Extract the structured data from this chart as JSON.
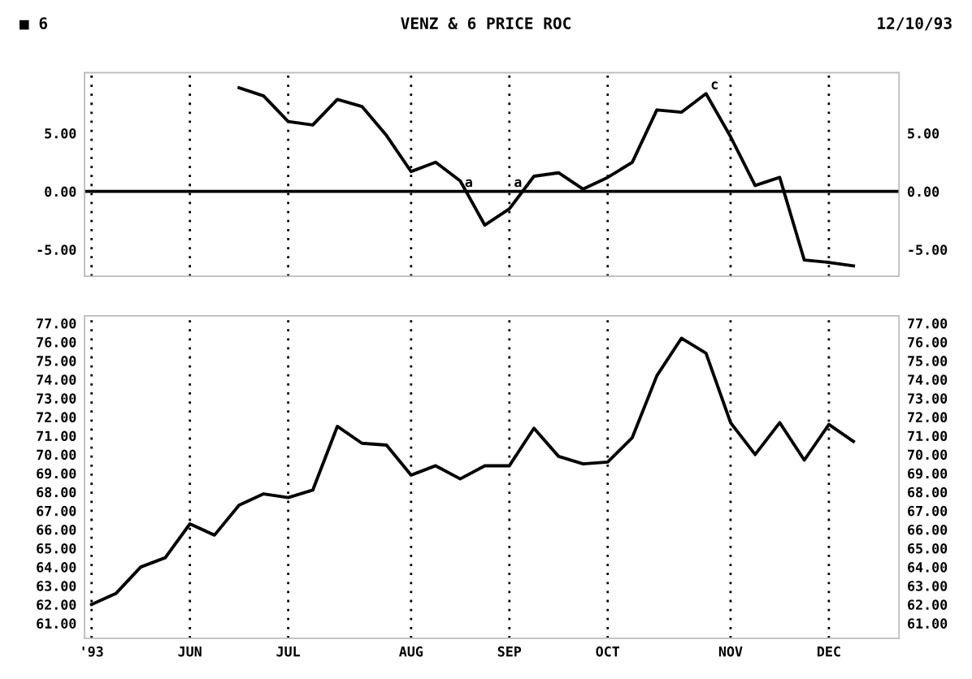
{
  "chart_data": [
    {
      "type": "line",
      "title": "VENZ & 6 PRICE ROC",
      "annotations": [
        "■ 6",
        "12/10/93",
        {
          "text": "a",
          "x": "1993-08-20",
          "y": 0
        },
        {
          "text": "a",
          "x": "1993-09-03",
          "y": 0
        },
        {
          "text": "c",
          "x": "1993-10-29",
          "y": 8.4
        }
      ],
      "series": [
        {
          "color": "#000000",
          "x": [
            "1993-06-18",
            "1993-06-25",
            "1993-07-02",
            "1993-07-09",
            "1993-07-16",
            "1993-07-23",
            "1993-07-30",
            "1993-08-06",
            "1993-08-13",
            "1993-08-20",
            "1993-08-27",
            "1993-09-03",
            "1993-09-10",
            "1993-09-17",
            "1993-09-24",
            "1993-10-01",
            "1993-10-08",
            "1993-10-15",
            "1993-10-22",
            "1993-10-29",
            "1993-11-05",
            "1993-11-12",
            "1993-11-19",
            "1993-11-26",
            "1993-12-03",
            "1993-12-10"
          ],
          "values": [
            8.9,
            8.2,
            6.0,
            5.7,
            7.9,
            7.3,
            4.8,
            1.7,
            2.5,
            0.9,
            -2.9,
            -1.5,
            1.3,
            1.6,
            0.2,
            1.2,
            2.5,
            7.0,
            6.8,
            8.4,
            4.7,
            0.5,
            1.2,
            -5.9,
            -6.1,
            -6.4
          ]
        }
      ],
      "xlim": [
        "1993-05-05",
        "1993-12-23"
      ],
      "xticks": [
        {
          "value": "1993-05-07",
          "label": null
        },
        {
          "value": "1993-06-04",
          "label": null
        },
        {
          "value": "1993-07-02",
          "label": null
        },
        {
          "value": "1993-08-06",
          "label": null
        },
        {
          "value": "1993-09-03",
          "label": null
        },
        {
          "value": "1993-10-01",
          "label": null
        },
        {
          "value": "1993-11-05",
          "label": null
        },
        {
          "value": "1993-12-03",
          "label": null
        }
      ],
      "ylim": [
        -7.3,
        10.2
      ],
      "yticks": [
        {
          "value": -5,
          "label": "-5.00"
        },
        {
          "value": 0,
          "label": "0.00"
        },
        {
          "value": 5,
          "label": "5.00"
        }
      ],
      "y2lim": [
        -7.3,
        10.2
      ],
      "y2ticks": [
        {
          "value": -5,
          "label": "-5.00"
        },
        {
          "value": 0,
          "label": "0.00"
        },
        {
          "value": 5,
          "label": "5.00"
        }
      ],
      "ref_lines": [
        {
          "axis": "y",
          "value": 0,
          "color": "#000000"
        }
      ],
      "grid": "x",
      "tick_labels": "y",
      "marker": "none",
      "line_style": "solid"
    },
    {
      "type": "line",
      "series": [
        {
          "color": "#000000",
          "x": [
            "1993-05-07",
            "1993-05-14",
            "1993-05-21",
            "1993-05-28",
            "1993-06-04",
            "1993-06-11",
            "1993-06-18",
            "1993-06-25",
            "1993-07-02",
            "1993-07-09",
            "1993-07-16",
            "1993-07-23",
            "1993-07-30",
            "1993-08-06",
            "1993-08-13",
            "1993-08-20",
            "1993-08-27",
            "1993-09-03",
            "1993-09-10",
            "1993-09-17",
            "1993-09-24",
            "1993-10-01",
            "1993-10-08",
            "1993-10-15",
            "1993-10-22",
            "1993-10-29",
            "1993-11-05",
            "1993-11-12",
            "1993-11-19",
            "1993-11-26",
            "1993-12-03",
            "1993-12-10"
          ],
          "values": [
            62.0,
            62.6,
            64.0,
            64.5,
            66.3,
            65.7,
            67.3,
            67.9,
            67.7,
            68.1,
            71.5,
            70.6,
            70.5,
            68.9,
            69.4,
            68.7,
            69.4,
            69.4,
            71.4,
            69.9,
            69.5,
            69.6,
            70.9,
            74.2,
            76.2,
            75.4,
            71.7,
            70.0,
            71.7,
            69.7,
            71.6,
            70.7
          ]
        }
      ],
      "xlim": [
        "1993-05-05",
        "1993-12-23"
      ],
      "xticks": [
        {
          "value": "1993-05-07",
          "label": "'93"
        },
        {
          "value": "1993-06-04",
          "label": "JUN"
        },
        {
          "value": "1993-07-02",
          "label": "JUL"
        },
        {
          "value": "1993-08-06",
          "label": "AUG"
        },
        {
          "value": "1993-09-03",
          "label": "SEP"
        },
        {
          "value": "1993-10-01",
          "label": "OCT"
        },
        {
          "value": "1993-11-05",
          "label": "NOV"
        },
        {
          "value": "1993-12-03",
          "label": "DEC"
        }
      ],
      "ylim": [
        60.2,
        77.4
      ],
      "yticks": [
        {
          "value": 61,
          "label": "61.00"
        },
        {
          "value": 62,
          "label": "62.00"
        },
        {
          "value": 63,
          "label": "63.00"
        },
        {
          "value": 64,
          "label": "64.00"
        },
        {
          "value": 65,
          "label": "65.00"
        },
        {
          "value": 66,
          "label": "66.00"
        },
        {
          "value": 67,
          "label": "67.00"
        },
        {
          "value": 68,
          "label": "68.00"
        },
        {
          "value": 69,
          "label": "69.00"
        },
        {
          "value": 70,
          "label": "70.00"
        },
        {
          "value": 71,
          "label": "71.00"
        },
        {
          "value": 72,
          "label": "72.00"
        },
        {
          "value": 73,
          "label": "73.00"
        },
        {
          "value": 74,
          "label": "74.00"
        },
        {
          "value": 75,
          "label": "75.00"
        },
        {
          "value": 76,
          "label": "76.00"
        },
        {
          "value": 77,
          "label": "77.00"
        }
      ],
      "y2lim": [
        60.2,
        77.4
      ],
      "y2ticks": [
        {
          "value": 61,
          "label": "61.00"
        },
        {
          "value": 62,
          "label": "62.00"
        },
        {
          "value": 63,
          "label": "63.00"
        },
        {
          "value": 64,
          "label": "64.00"
        },
        {
          "value": 65,
          "label": "65.00"
        },
        {
          "value": 66,
          "label": "66.00"
        },
        {
          "value": 67,
          "label": "67.00"
        },
        {
          "value": 68,
          "label": "68.00"
        },
        {
          "value": 69,
          "label": "69.00"
        },
        {
          "value": 70,
          "label": "70.00"
        },
        {
          "value": 71,
          "label": "71.00"
        },
        {
          "value": 72,
          "label": "72.00"
        },
        {
          "value": 73,
          "label": "73.00"
        },
        {
          "value": 74,
          "label": "74.00"
        },
        {
          "value": 75,
          "label": "75.00"
        },
        {
          "value": 76,
          "label": "76.00"
        },
        {
          "value": 77,
          "label": "77.00"
        }
      ],
      "grid": "x",
      "marker": "none",
      "line_style": "solid"
    }
  ]
}
